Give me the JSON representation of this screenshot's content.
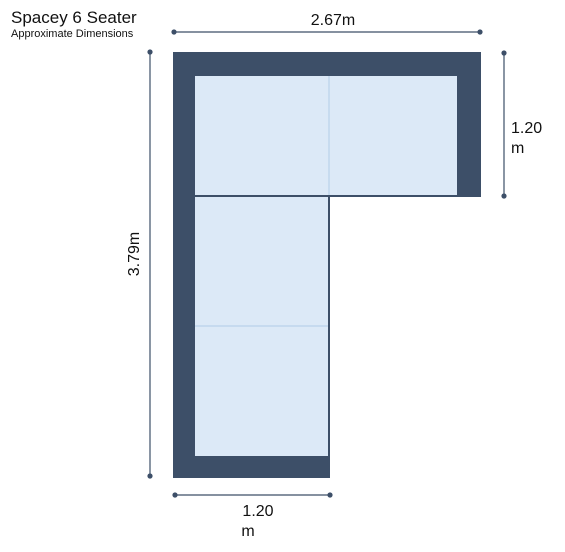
{
  "title": "Spacey 6 Seater",
  "subtitle": "Approximate Dimensions",
  "dimensions": {
    "top_width": "2.67m",
    "left_height": "3.79m",
    "right_height_line1": "1.20",
    "right_height_line2": "m",
    "bottom_width_line1": "1.20",
    "bottom_width_line2": "m"
  },
  "colors": {
    "frame": "#3d4f68",
    "cushion": "#dce9f7",
    "seam": "#b9d2ea",
    "dimension_line": "#3d4f68"
  }
}
